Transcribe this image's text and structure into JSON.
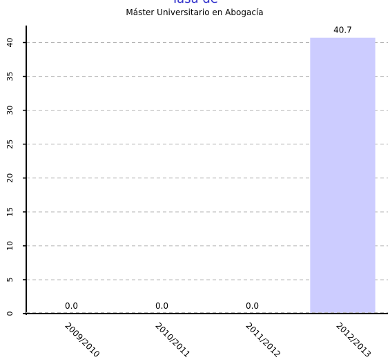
{
  "chart_data": {
    "type": "bar",
    "title": "Tasa de",
    "subtitle": "Máster Universitario en Abogacía",
    "categories": [
      "2009/2010",
      "2010/2011",
      "2011/2012",
      "2012/2013"
    ],
    "values": [
      0.0,
      0.0,
      0.0,
      40.7
    ],
    "value_labels": [
      "0.0",
      "0.0",
      "0.0",
      "40.7"
    ],
    "xlabel": "",
    "ylabel": "",
    "ylim": [
      0,
      42.5
    ],
    "yticks": [
      0,
      5,
      10,
      15,
      20,
      25,
      30,
      35,
      40
    ],
    "grid": true,
    "legend": "none",
    "colors": {
      "bar": "#ccccff",
      "title": "#3333cc",
      "axis": "#000000",
      "grid": "#b4b4b4",
      "text": "#000000"
    }
  }
}
